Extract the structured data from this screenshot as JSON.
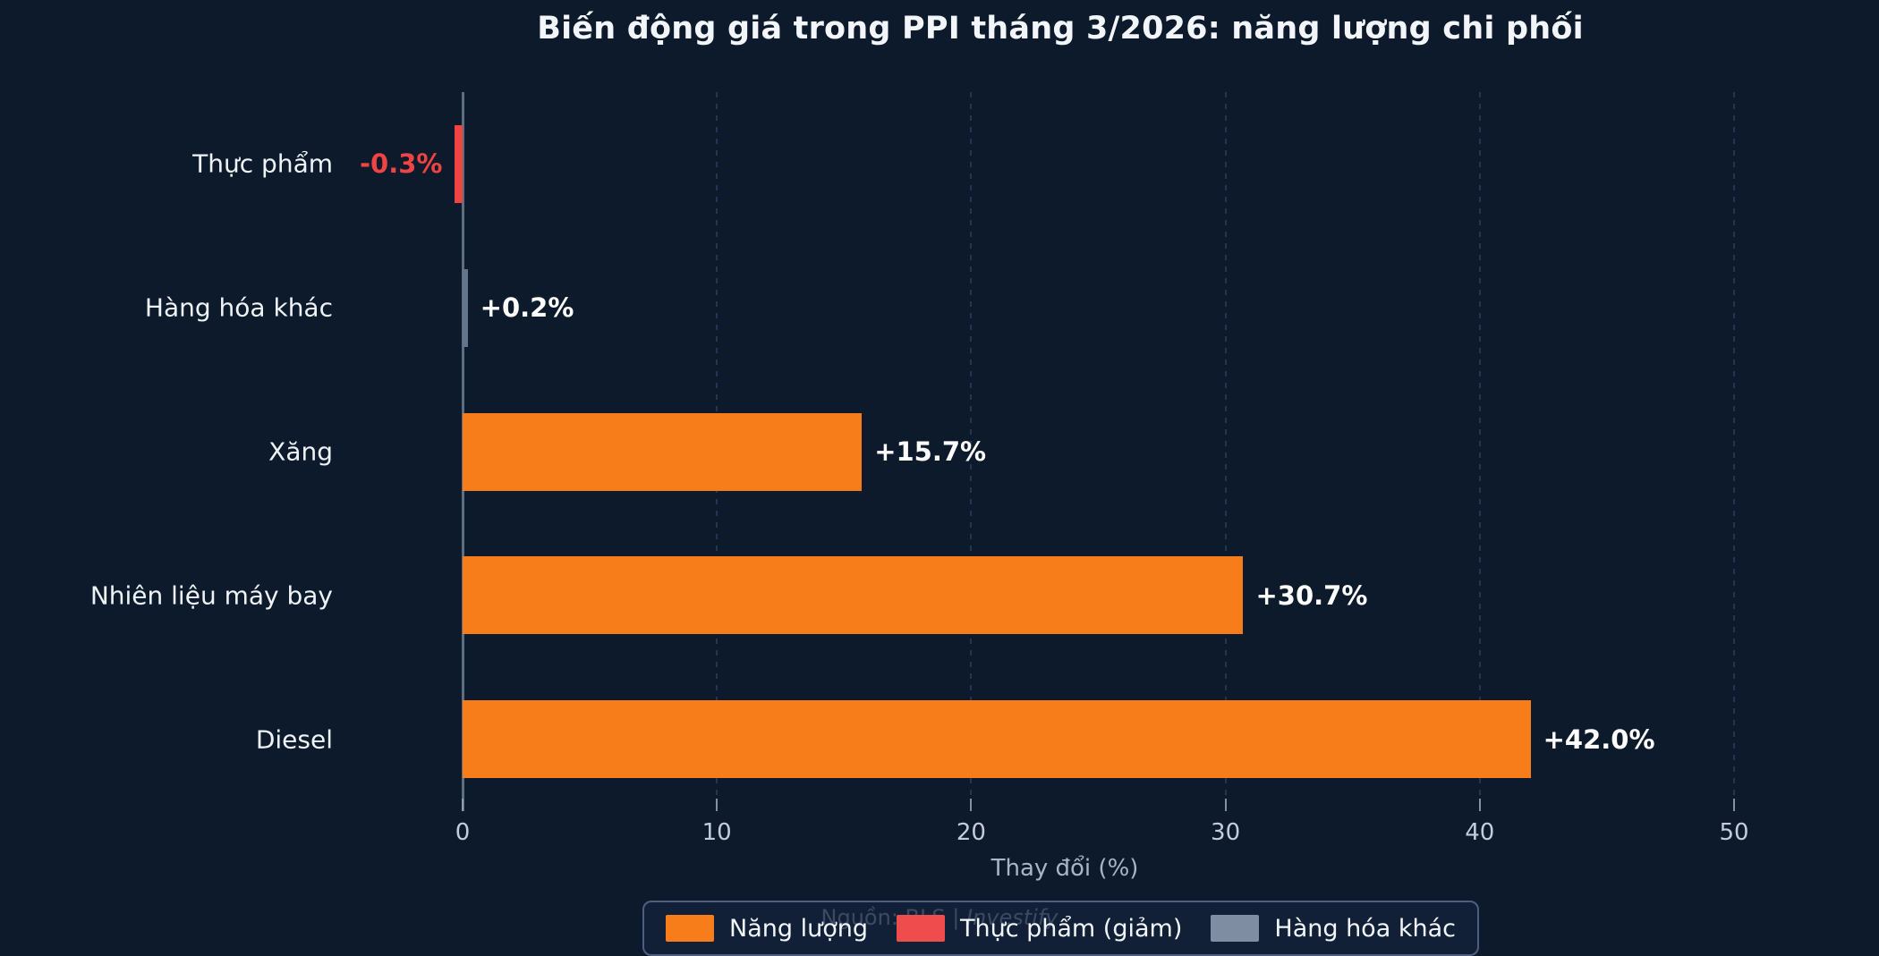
{
  "chart_data": {
    "type": "bar",
    "orientation": "horizontal",
    "title": "Biến động giá trong PPI tháng 3/2026: năng lượng chi phối",
    "xlabel": "Thay đổi (%)",
    "categories": [
      "Thực phẩm",
      "Hàng hóa khác",
      "Xăng",
      "Nhiên liệu máy bay",
      "Diesel"
    ],
    "values": [
      -0.3,
      0.2,
      15.7,
      30.7,
      42.0
    ],
    "value_labels": [
      "-0.3%",
      "+0.2%",
      "+15.7%",
      "+30.7%",
      "+42.0%"
    ],
    "bar_colors": [
      "#ef4444",
      "#64748b",
      "#f67d1a",
      "#f67d1a",
      "#f67d1a"
    ],
    "value_label_colors": [
      "#ef4444",
      "#ffffff",
      "#ffffff",
      "#ffffff",
      "#ffffff"
    ],
    "xticks": [
      0,
      10,
      20,
      30,
      40,
      50
    ],
    "xlim": [
      0,
      50
    ],
    "grid": "vertical-dashed",
    "legend_position": "bottom",
    "legend": [
      {
        "label": "Năng lượng",
        "color": "#f67d1a"
      },
      {
        "label": "Thực phẩm (giảm)",
        "color": "#ef4d4d"
      },
      {
        "label": "Hàng hóa khác",
        "color": "#7e8da1"
      }
    ],
    "source_prefix": "Nguồn: BLS",
    "source_separator": "|",
    "source_brand": "Investify"
  },
  "colors": {
    "background": "#0d1a2b",
    "energy": "#f67d1a",
    "food_negative": "#ef4444",
    "other_goods": "#64748b",
    "gridline": "#24364f",
    "zero_line": "#5d6e80",
    "tick_text": "#c2cdd9"
  }
}
